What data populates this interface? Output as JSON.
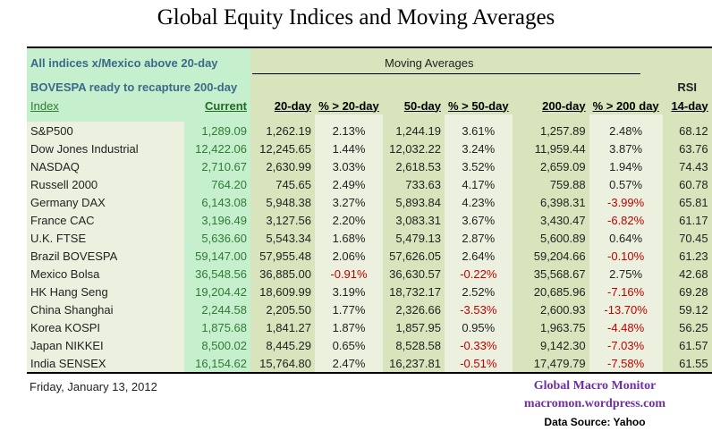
{
  "title": "Global Equity Indices and Moving Averages",
  "notes": [
    "All indices x/Mexico above 20-day",
    "BOVESPA ready to recapture 200-day"
  ],
  "group_header": "Moving Averages",
  "rsi_header": "RSI",
  "headers": [
    "Index",
    "Current",
    "20-day",
    "% > 20-day",
    "50-day",
    "% > 50-day",
    "200-day",
    "% > 200 day",
    "14-day"
  ],
  "rows": [
    [
      "S&P500",
      "1,289.09",
      "1,262.19",
      "2.13%",
      "1,244.19",
      "3.61%",
      "1,257.89",
      "2.48%",
      "68.12"
    ],
    [
      "Dow Jones Industrial",
      "12,422.06",
      "12,245.65",
      "1.44%",
      "12,032.22",
      "3.24%",
      "11,959.44",
      "3.87%",
      "63.76"
    ],
    [
      "NASDAQ",
      "2,710.67",
      "2,630.99",
      "3.03%",
      "2,618.53",
      "3.52%",
      "2,659.09",
      "1.94%",
      "74.43"
    ],
    [
      "Russell 2000",
      "764.20",
      "745.65",
      "2.49%",
      "733.63",
      "4.17%",
      "759.88",
      "0.57%",
      "60.78"
    ],
    [
      "Germany DAX",
      "6,143.08",
      "5,948.38",
      "3.27%",
      "5,893.84",
      "4.23%",
      "6,398.31",
      "-3.99%",
      "65.81"
    ],
    [
      "France CAC",
      "3,196.49",
      "3,127.56",
      "2.20%",
      "3,083.31",
      "3.67%",
      "3,430.47",
      "-6.82%",
      "61.17"
    ],
    [
      "U.K. FTSE",
      "5,636.60",
      "5,543.34",
      "1.68%",
      "5,479.13",
      "2.87%",
      "5,600.89",
      "0.64%",
      "70.45"
    ],
    [
      "Brazil BOVESPA",
      "59,147.00",
      "57,955.48",
      "2.06%",
      "57,626.05",
      "2.64%",
      "59,204.66",
      "-0.10%",
      "61.23"
    ],
    [
      "Mexico Bolsa",
      "36,548.56",
      "36,885.00",
      "-0.91%",
      "36,630.57",
      "-0.22%",
      "35,568.67",
      "2.75%",
      "42.68"
    ],
    [
      "HK  Hang Seng",
      "19,204.42",
      "18,609.99",
      "3.19%",
      "18,732.17",
      "2.52%",
      "20,685.96",
      "-7.16%",
      "69.28"
    ],
    [
      "China Shanghai",
      "2,244.58",
      "2,205.50",
      "1.77%",
      "2,326.66",
      "-3.53%",
      "2,600.93",
      "-13.70%",
      "59.12"
    ],
    [
      "Korea KOSPI",
      "1,875.68",
      "1,841.27",
      "1.87%",
      "1,857.95",
      "0.95%",
      "1,963.75",
      "-4.48%",
      "56.25"
    ],
    [
      "Japan NIKKEI",
      "8,500.02",
      "8,445.29",
      "0.65%",
      "8,528.58",
      "-0.33%",
      "9,142.30",
      "-7.03%",
      "61.57"
    ],
    [
      "India SENSEX",
      "16,154.62",
      "15,764.80",
      "2.47%",
      "16,237.81",
      "-0.51%",
      "17,479.79",
      "-7.58%",
      "61.55"
    ]
  ],
  "footer": {
    "date": "Friday, January 13, 2012",
    "brand": "Global Macro Monitor",
    "site": "macromon.wordpress.com",
    "source": "Data Source: Yahoo"
  },
  "colors": {
    "negative": "#c00000",
    "current": "#2e7d32",
    "brand": "#7030a0"
  }
}
